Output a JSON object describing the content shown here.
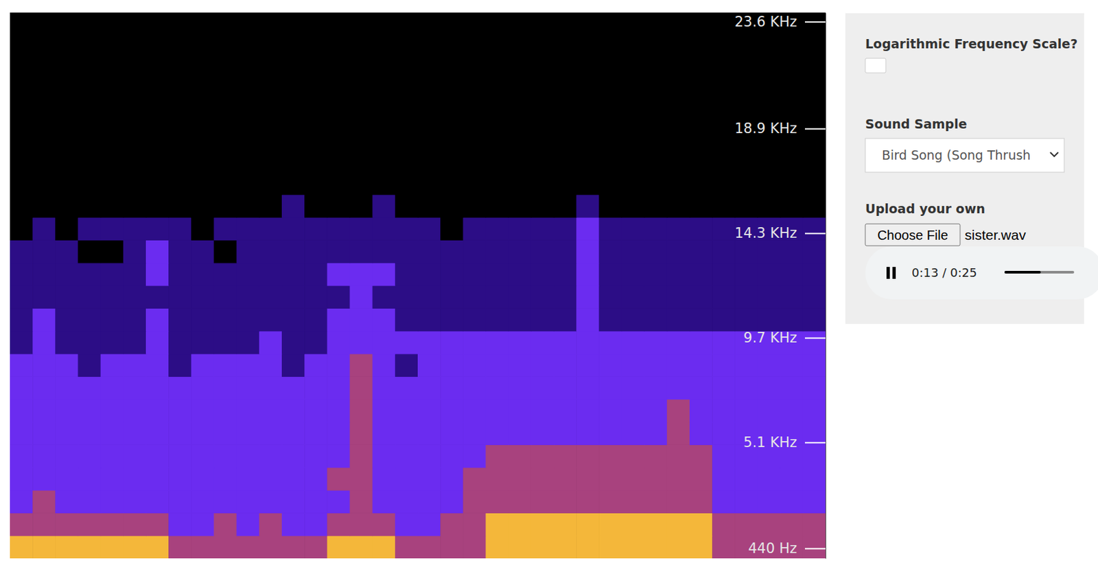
{
  "chart_data": {
    "type": "heatmap",
    "ylim": [
      0,
      24000
    ],
    "yticks": [
      {
        "value": 440,
        "label": "440 Hz"
      },
      {
        "value": 5100,
        "label": "5.1 KHz"
      },
      {
        "value": 9700,
        "label": "9.7 KHz"
      },
      {
        "value": 14300,
        "label": "14.3 KHz"
      },
      {
        "value": 18900,
        "label": "18.9 KHz"
      },
      {
        "value": 23600,
        "label": "23.6 KHz"
      }
    ],
    "y_bins": [
      0,
      1000,
      2000,
      3000,
      4000,
      5000,
      6000,
      7000,
      8000,
      9000,
      10000,
      11000,
      12000,
      13000,
      14000,
      15000,
      16000,
      17000,
      18000,
      19000,
      20000,
      21000,
      22000,
      23000,
      24000
    ],
    "zlim": [
      0,
      4
    ],
    "cells": [
      [
        4,
        4,
        4,
        4,
        4,
        4,
        4,
        3,
        3,
        3,
        3,
        3,
        3,
        3,
        4,
        4,
        4,
        3,
        3,
        3,
        3,
        4,
        4,
        4,
        4,
        4,
        4,
        4,
        4,
        4,
        4,
        3,
        3,
        3,
        3,
        3
      ],
      [
        3,
        3,
        3,
        3,
        3,
        3,
        3,
        2,
        2,
        3,
        2,
        3,
        2,
        2,
        3,
        3,
        3,
        2,
        2,
        3,
        3,
        4,
        4,
        4,
        4,
        4,
        4,
        4,
        4,
        4,
        4,
        3,
        3,
        3,
        3,
        3
      ],
      [
        2,
        3,
        2,
        2,
        2,
        2,
        2,
        2,
        2,
        2,
        2,
        2,
        2,
        2,
        2,
        3,
        2,
        2,
        2,
        2,
        3,
        3,
        3,
        3,
        3,
        3,
        3,
        3,
        3,
        3,
        3,
        2,
        2,
        2,
        2,
        2
      ],
      [
        2,
        2,
        2,
        2,
        2,
        2,
        2,
        2,
        2,
        2,
        2,
        2,
        2,
        2,
        3,
        3,
        2,
        2,
        2,
        2,
        3,
        3,
        3,
        3,
        3,
        3,
        3,
        3,
        3,
        3,
        3,
        2,
        2,
        2,
        2,
        2
      ],
      [
        2,
        2,
        2,
        2,
        2,
        2,
        2,
        2,
        2,
        2,
        2,
        2,
        2,
        2,
        2,
        3,
        2,
        2,
        2,
        2,
        2,
        3,
        3,
        3,
        3,
        3,
        3,
        3,
        3,
        3,
        3,
        2,
        2,
        2,
        2,
        2
      ],
      [
        2,
        2,
        2,
        2,
        2,
        2,
        2,
        2,
        2,
        2,
        2,
        2,
        2,
        2,
        2,
        3,
        2,
        2,
        2,
        2,
        2,
        2,
        2,
        2,
        2,
        2,
        2,
        2,
        2,
        3,
        2,
        2,
        2,
        2,
        2,
        2
      ],
      [
        2,
        2,
        2,
        2,
        2,
        2,
        2,
        2,
        2,
        2,
        2,
        2,
        2,
        2,
        2,
        3,
        2,
        2,
        2,
        2,
        2,
        2,
        2,
        2,
        2,
        2,
        2,
        2,
        2,
        3,
        2,
        2,
        2,
        2,
        2,
        2
      ],
      [
        2,
        2,
        2,
        2,
        2,
        2,
        2,
        2,
        2,
        2,
        2,
        2,
        2,
        2,
        2,
        3,
        2,
        2,
        2,
        2,
        2,
        2,
        2,
        2,
        2,
        2,
        2,
        2,
        2,
        2,
        2,
        2,
        2,
        2,
        2,
        2
      ],
      [
        2,
        2,
        2,
        1,
        2,
        2,
        2,
        1,
        2,
        2,
        2,
        2,
        1,
        2,
        2,
        3,
        2,
        1,
        2,
        2,
        2,
        2,
        2,
        2,
        2,
        2,
        2,
        2,
        2,
        2,
        2,
        2,
        2,
        2,
        2,
        2
      ],
      [
        1,
        2,
        1,
        1,
        1,
        1,
        2,
        1,
        1,
        1,
        1,
        2,
        1,
        1,
        2,
        2,
        2,
        2,
        2,
        2,
        2,
        2,
        2,
        2,
        2,
        2,
        2,
        2,
        2,
        2,
        2,
        2,
        2,
        2,
        2,
        2
      ],
      [
        1,
        2,
        1,
        1,
        1,
        1,
        2,
        1,
        1,
        1,
        1,
        1,
        1,
        1,
        2,
        2,
        2,
        1,
        1,
        1,
        1,
        1,
        1,
        1,
        1,
        2,
        1,
        1,
        1,
        1,
        1,
        1,
        1,
        1,
        1,
        1
      ],
      [
        1,
        1,
        1,
        1,
        1,
        1,
        1,
        1,
        1,
        1,
        1,
        1,
        1,
        1,
        1,
        2,
        1,
        1,
        1,
        1,
        1,
        1,
        1,
        1,
        1,
        2,
        1,
        1,
        1,
        1,
        1,
        1,
        1,
        1,
        1,
        1
      ],
      [
        1,
        1,
        1,
        1,
        1,
        1,
        2,
        1,
        1,
        1,
        1,
        1,
        1,
        1,
        2,
        2,
        2,
        1,
        1,
        1,
        1,
        1,
        1,
        1,
        1,
        2,
        1,
        1,
        1,
        1,
        1,
        1,
        1,
        1,
        1,
        1
      ],
      [
        1,
        1,
        1,
        0,
        0,
        1,
        2,
        1,
        1,
        0,
        1,
        1,
        1,
        1,
        1,
        1,
        1,
        1,
        1,
        1,
        1,
        1,
        1,
        1,
        1,
        2,
        1,
        1,
        1,
        1,
        1,
        1,
        1,
        1,
        1,
        1
      ],
      [
        0,
        1,
        0,
        1,
        1,
        1,
        1,
        1,
        0,
        1,
        1,
        1,
        1,
        1,
        1,
        1,
        1,
        1,
        1,
        0,
        1,
        1,
        1,
        1,
        1,
        2,
        1,
        1,
        1,
        1,
        1,
        1,
        1,
        1,
        1,
        1
      ],
      [
        0,
        0,
        0,
        0,
        0,
        0,
        0,
        0,
        0,
        0,
        0,
        0,
        1,
        0,
        0,
        0,
        1,
        0,
        0,
        0,
        0,
        0,
        0,
        0,
        0,
        1,
        0,
        0,
        0,
        0,
        0,
        0,
        0,
        0,
        0,
        0
      ],
      [
        0,
        0,
        0,
        0,
        0,
        0,
        0,
        0,
        0,
        0,
        0,
        0,
        0,
        0,
        0,
        0,
        0,
        0,
        0,
        0,
        0,
        0,
        0,
        0,
        0,
        0,
        0,
        0,
        0,
        0,
        0,
        0,
        0,
        0,
        0,
        0
      ],
      [
        0,
        0,
        0,
        0,
        0,
        0,
        0,
        0,
        0,
        0,
        0,
        0,
        0,
        0,
        0,
        0,
        0,
        0,
        0,
        0,
        0,
        0,
        0,
        0,
        0,
        0,
        0,
        0,
        0,
        0,
        0,
        0,
        0,
        0,
        0,
        0
      ],
      [
        0,
        0,
        0,
        0,
        0,
        0,
        0,
        0,
        0,
        0,
        0,
        0,
        0,
        0,
        0,
        0,
        0,
        0,
        0,
        0,
        0,
        0,
        0,
        0,
        0,
        0,
        0,
        0,
        0,
        0,
        0,
        0,
        0,
        0,
        0,
        0
      ],
      [
        0,
        0,
        0,
        0,
        0,
        0,
        0,
        0,
        0,
        0,
        0,
        0,
        0,
        0,
        0,
        0,
        0,
        0,
        0,
        0,
        0,
        0,
        0,
        0,
        0,
        0,
        0,
        0,
        0,
        0,
        0,
        0,
        0,
        0,
        0,
        0
      ],
      [
        0,
        0,
        0,
        0,
        0,
        0,
        0,
        0,
        0,
        0,
        0,
        0,
        0,
        0,
        0,
        0,
        0,
        0,
        0,
        0,
        0,
        0,
        0,
        0,
        0,
        0,
        0,
        0,
        0,
        0,
        0,
        0,
        0,
        0,
        0,
        0
      ],
      [
        0,
        0,
        0,
        0,
        0,
        0,
        0,
        0,
        0,
        0,
        0,
        0,
        0,
        0,
        0,
        0,
        0,
        0,
        0,
        0,
        0,
        0,
        0,
        0,
        0,
        0,
        0,
        0,
        0,
        0,
        0,
        0,
        0,
        0,
        0,
        0
      ],
      [
        0,
        0,
        0,
        0,
        0,
        0,
        0,
        0,
        0,
        0,
        0,
        0,
        0,
        0,
        0,
        0,
        0,
        0,
        0,
        0,
        0,
        0,
        0,
        0,
        0,
        0,
        0,
        0,
        0,
        0,
        0,
        0,
        0,
        0,
        0,
        0
      ],
      [
        0,
        0,
        0,
        0,
        0,
        0,
        0,
        0,
        0,
        0,
        0,
        0,
        0,
        0,
        0,
        0,
        0,
        0,
        0,
        0,
        0,
        0,
        0,
        0,
        0,
        0,
        0,
        0,
        0,
        0,
        0,
        0,
        0,
        0,
        0,
        0
      ]
    ]
  },
  "controls": {
    "log_label": "Logarithmic Frequency Scale?",
    "log_checked": false,
    "sample_label": "Sound Sample",
    "sample_selected": "Bird Song (Song Thrush",
    "upload_label": "Upload your own",
    "button_text": "Choose File",
    "file_name": "sister.wav",
    "time_label": "0:13 / 0:25",
    "position_s": 13,
    "duration_s": 25
  }
}
